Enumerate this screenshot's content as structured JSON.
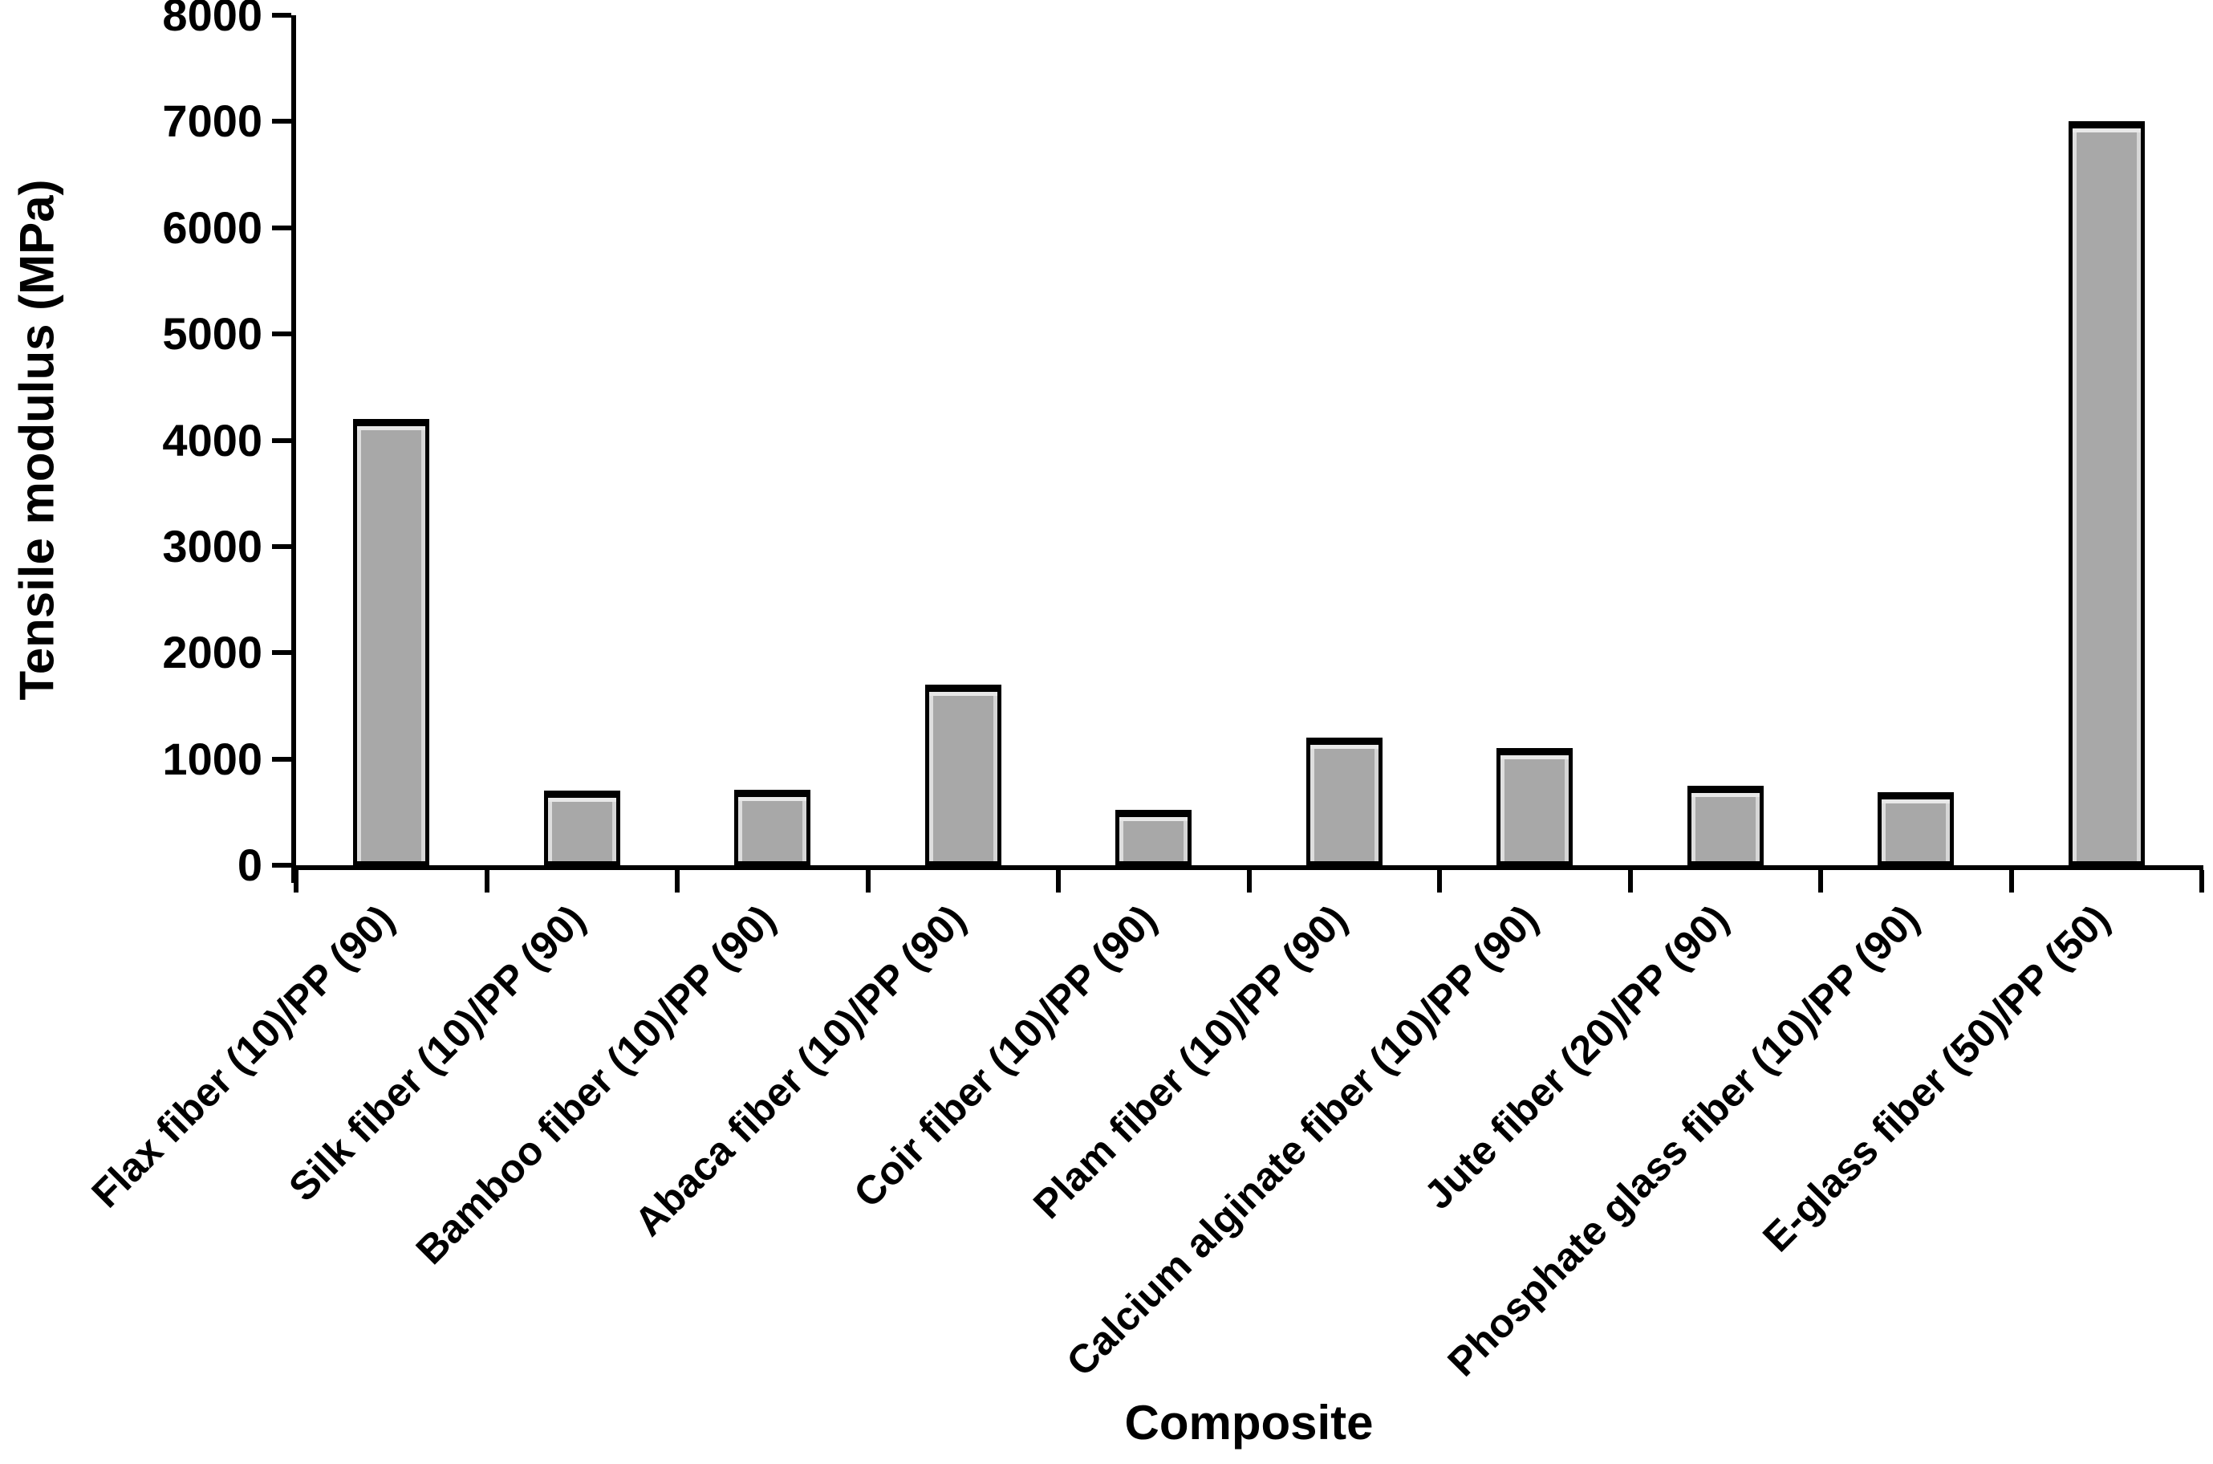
{
  "figure": {
    "background_color": "#ffffff",
    "axis_color": "#000000",
    "bar_fill_color": "#a8a8a8",
    "bar_border_color": "#000000",
    "text_color": "#000000"
  },
  "chart_data": {
    "type": "bar",
    "title": "",
    "xlabel": "Composite",
    "ylabel": "Tensile modulus (MPa)",
    "ylim": [
      0,
      8000
    ],
    "ytick_interval": 1000,
    "ytick_labels": [
      "0",
      "1000",
      "2000",
      "3000",
      "4000",
      "5000",
      "6000",
      "7000",
      "8000"
    ],
    "grid": false,
    "legend": null,
    "categories": [
      "Flax fiber (10)/PP (90)",
      "Silk fiber (10)/PP (90)",
      "Bamboo fiber (10)/PP (90)",
      "Abaca fiber (10)/PP (90)",
      "Coir fiber (10)/PP (90)",
      "Plam fiber (10)/PP (90)",
      "Calcium alginate fiber (10)/PP (90)",
      "Jute fiber (20)/PP (90)",
      "Phosphate glass fiber (10)/PP (90)",
      "E-glass fiber (50)/PP (50)"
    ],
    "values": [
      4200,
      700,
      710,
      1700,
      520,
      1200,
      1100,
      750,
      690,
      7000
    ]
  }
}
